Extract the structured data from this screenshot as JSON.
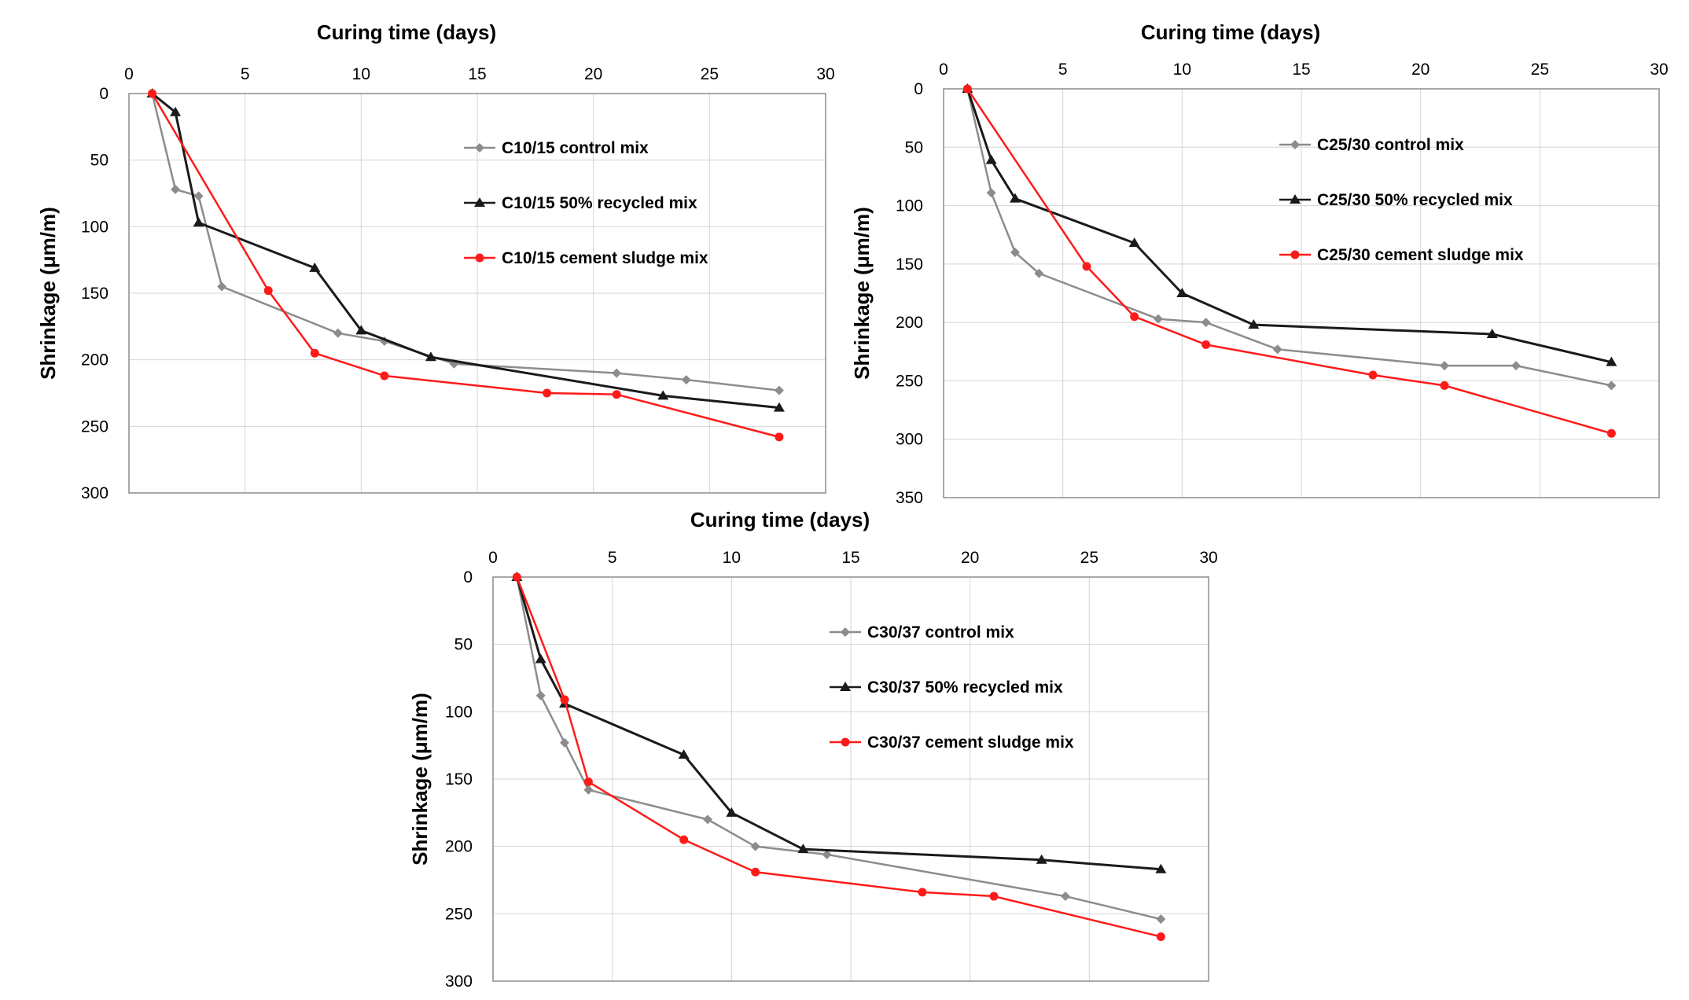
{
  "colors": {
    "control": "#8c8c8c",
    "recycled": "#1a1a1a",
    "sludge": "#ff1a1a"
  },
  "chart_data": [
    {
      "type": "line",
      "xlabel": "Curing time (days)",
      "ylabel": "Shrinkage (μm/m)",
      "xlim": [
        0,
        30
      ],
      "ylim": [
        0,
        300
      ],
      "x_ticks": [
        "0",
        "5",
        "10",
        "15",
        "20",
        "25",
        "30"
      ],
      "y_ticks": [
        "0",
        "50",
        "100",
        "150",
        "200",
        "250",
        "300"
      ],
      "legend_position": "top-right",
      "series": [
        {
          "name": "C10/15 control mix",
          "marker": "diamond",
          "x": [
            1,
            2,
            3,
            4,
            9,
            11,
            14,
            21,
            24,
            28
          ],
          "y": [
            0,
            72,
            77,
            145,
            180,
            186,
            203,
            210,
            215,
            223
          ]
        },
        {
          "name": "C10/15 50% recycled mix",
          "marker": "triangle",
          "x": [
            1,
            2,
            3,
            8,
            10,
            13,
            23,
            28
          ],
          "y": [
            0,
            14,
            97,
            131,
            178,
            198,
            227,
            236
          ]
        },
        {
          "name": "C10/15 cement sludge mix",
          "marker": "circle",
          "x": [
            1,
            6,
            8,
            11,
            18,
            21,
            28
          ],
          "y": [
            0,
            148,
            195,
            212,
            225,
            226,
            258
          ]
        }
      ]
    },
    {
      "type": "line",
      "xlabel": "Curing time (days)",
      "ylabel": "Shrinkage (μm/m)",
      "xlim": [
        0,
        30
      ],
      "ylim": [
        0,
        350
      ],
      "x_ticks": [
        "0",
        "5",
        "10",
        "15",
        "20",
        "25",
        "30"
      ],
      "y_ticks": [
        "0",
        "50",
        "100",
        "150",
        "200",
        "250",
        "300",
        "350"
      ],
      "legend_position": "top-right",
      "series": [
        {
          "name": "C25/30 control mix",
          "marker": "diamond",
          "x": [
            1,
            2,
            3,
            4,
            9,
            11,
            14,
            21,
            24,
            28
          ],
          "y": [
            0,
            89,
            140,
            158,
            197,
            200,
            223,
            237,
            237,
            254
          ]
        },
        {
          "name": "C25/30 50% recycled mix",
          "marker": "triangle",
          "x": [
            1,
            2,
            3,
            8,
            10,
            13,
            23,
            28
          ],
          "y": [
            0,
            61,
            94,
            132,
            175,
            202,
            210,
            234
          ]
        },
        {
          "name": "C25/30 cement sludge mix",
          "marker": "circle",
          "x": [
            1,
            6,
            8,
            11,
            18,
            21,
            28
          ],
          "y": [
            0,
            152,
            195,
            219,
            245,
            254,
            295
          ]
        }
      ]
    },
    {
      "type": "line",
      "xlabel": "Curing time (days)",
      "ylabel": "Shrinkage (μm/m)",
      "xlim": [
        0,
        30
      ],
      "ylim": [
        0,
        300
      ],
      "x_ticks": [
        "0",
        "5",
        "10",
        "15",
        "20",
        "25",
        "30"
      ],
      "y_ticks": [
        "0",
        "50",
        "100",
        "150",
        "200",
        "250",
        "300"
      ],
      "legend_position": "top-right",
      "series": [
        {
          "name": "C30/37 control mix",
          "marker": "diamond",
          "x": [
            1,
            2,
            3,
            4,
            9,
            11,
            14,
            24,
            28
          ],
          "y": [
            0,
            88,
            123,
            158,
            180,
            200,
            206,
            237,
            254
          ]
        },
        {
          "name": "C30/37 50% recycled mix",
          "marker": "triangle",
          "x": [
            1,
            2,
            3,
            8,
            10,
            13,
            23,
            28
          ],
          "y": [
            0,
            61,
            94,
            132,
            175,
            202,
            210,
            217
          ]
        },
        {
          "name": "C30/37 cement sludge mix",
          "marker": "circle",
          "x": [
            1,
            3,
            4,
            8,
            11,
            18,
            21,
            28
          ],
          "y": [
            0,
            91,
            152,
            195,
            219,
            234,
            237,
            267
          ]
        }
      ]
    }
  ]
}
